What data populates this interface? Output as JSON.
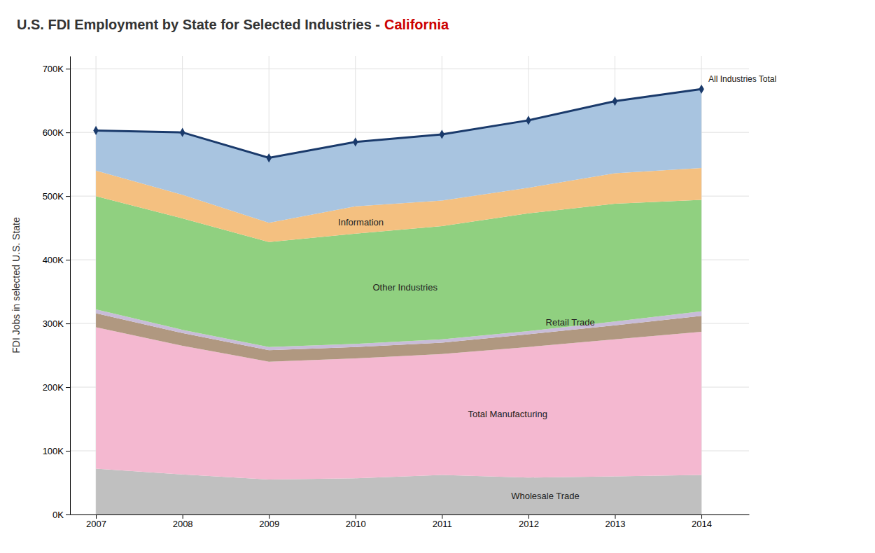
{
  "chart_data": {
    "type": "area",
    "title": "U.S. FDI Employment by State for Selected Industries -",
    "subtitle": "California",
    "ylabel": "FDI Jobs in selected U.S. State",
    "stacked": true,
    "grid": true,
    "x": [
      2007,
      2008,
      2009,
      2010,
      2011,
      2012,
      2013,
      2014
    ],
    "xlim": [
      2006.7,
      2014.55
    ],
    "xticks": [
      2007,
      2008,
      2009,
      2010,
      2011,
      2012,
      2013,
      2014
    ],
    "ylim": [
      0,
      720000
    ],
    "yticks": [
      {
        "value": 0,
        "label": "0K"
      },
      {
        "value": 100000,
        "label": "100K"
      },
      {
        "value": 200000,
        "label": "200K"
      },
      {
        "value": 300000,
        "label": "300K"
      },
      {
        "value": 400000,
        "label": "400K"
      },
      {
        "value": 500000,
        "label": "500K"
      },
      {
        "value": 600000,
        "label": "600K"
      },
      {
        "value": 700000,
        "label": "700K"
      }
    ],
    "series": [
      {
        "name": "Wholesale Trade",
        "type": "area",
        "color": "#c0c0c0",
        "values": [
          72000,
          63000,
          55000,
          57000,
          62000,
          58000,
          60000,
          62000
        ]
      },
      {
        "name": "Total Manufacturing",
        "type": "area",
        "color": "#f4b8d0",
        "values": [
          222000,
          202000,
          185000,
          188000,
          190000,
          205000,
          215000,
          225000
        ]
      },
      {
        "type": "area",
        "color": "#b09880",
        "values": [
          22000,
          20000,
          18000,
          18000,
          18000,
          20000,
          22000,
          25000
        ]
      },
      {
        "name": "Retail Trade",
        "type": "area",
        "color": "#c8bcd8",
        "values": [
          6000,
          5000,
          5000,
          5000,
          5000,
          5000,
          6000,
          7000
        ]
      },
      {
        "name": "Other Industries",
        "type": "area",
        "color": "#90d080",
        "values": [
          178000,
          175000,
          165000,
          173000,
          178000,
          185000,
          185000,
          175000
        ]
      },
      {
        "name": "Information",
        "type": "area",
        "color": "#f4c080",
        "values": [
          40000,
          37000,
          30000,
          43000,
          40000,
          40000,
          48000,
          50000
        ]
      },
      {
        "type": "area",
        "color": "#a8c4e0",
        "values": [
          63000,
          98000,
          102000,
          101000,
          104000,
          106000,
          113000,
          124000
        ]
      },
      {
        "name": "All Industries Total",
        "type": "line",
        "marker": "diamond",
        "color": "#1a3a6b",
        "values": [
          603000,
          600000,
          560000,
          585000,
          597000,
          619000,
          649000,
          668000
        ]
      }
    ]
  }
}
